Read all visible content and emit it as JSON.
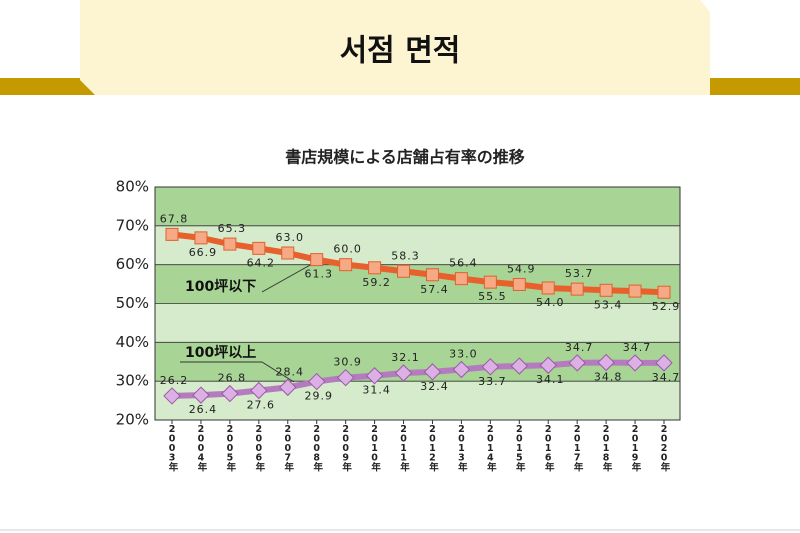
{
  "slide_title": "서점 면적",
  "chart_data": {
    "type": "line",
    "title": "書店規模による店舗占有率の推移",
    "categories": [
      "2003年",
      "2004年",
      "2005年",
      "2006年",
      "2007年",
      "2008年",
      "2009年",
      "2010年",
      "2011年",
      "2012年",
      "2013年",
      "2014年",
      "2015年",
      "2016年",
      "2017年",
      "2018年",
      "2019年",
      "2020年"
    ],
    "series": [
      {
        "name": "100坪以下",
        "color": "#e8612c",
        "marker": "square",
        "values": [
          67.8,
          66.9,
          65.3,
          64.2,
          63.0,
          61.3,
          60.0,
          59.2,
          58.3,
          57.4,
          56.4,
          55.5,
          54.9,
          54.0,
          53.7,
          53.4,
          53.2,
          52.9
        ],
        "value_labels": [
          "67.8",
          "66.9",
          "65.3",
          "64.2",
          "63.0",
          "61.3",
          "60.0",
          "59.2",
          "58.3",
          "57.4",
          "56.4",
          "55.5",
          "54.9",
          "54.0",
          "53.7",
          "53.4",
          null,
          "52.9"
        ]
      },
      {
        "name": "100坪以上",
        "color": "#b57bbf",
        "marker": "diamond",
        "values": [
          26.2,
          26.4,
          26.8,
          27.6,
          28.4,
          29.9,
          30.9,
          31.4,
          32.1,
          32.4,
          33.0,
          33.7,
          33.9,
          34.1,
          34.7,
          34.8,
          34.7,
          34.7
        ],
        "value_labels": [
          "26.2",
          "26.4",
          "26.8",
          "27.6",
          "28.4",
          "29.9",
          "30.9",
          "31.4",
          "32.1",
          "32.4",
          "33.0",
          "33.7",
          null,
          "34.1",
          "34.7",
          "34.8",
          "34.7",
          "34.7"
        ]
      }
    ],
    "ylim": [
      20,
      80
    ],
    "yticks": [
      {
        "value": 20,
        "label": "20%"
      },
      {
        "value": 30,
        "label": "30%"
      },
      {
        "value": 40,
        "label": "40%"
      },
      {
        "value": 50,
        "label": "50%"
      },
      {
        "value": 60,
        "label": "60%"
      },
      {
        "value": 70,
        "label": "70%"
      },
      {
        "value": 80,
        "label": "80%"
      }
    ],
    "grid": true
  }
}
